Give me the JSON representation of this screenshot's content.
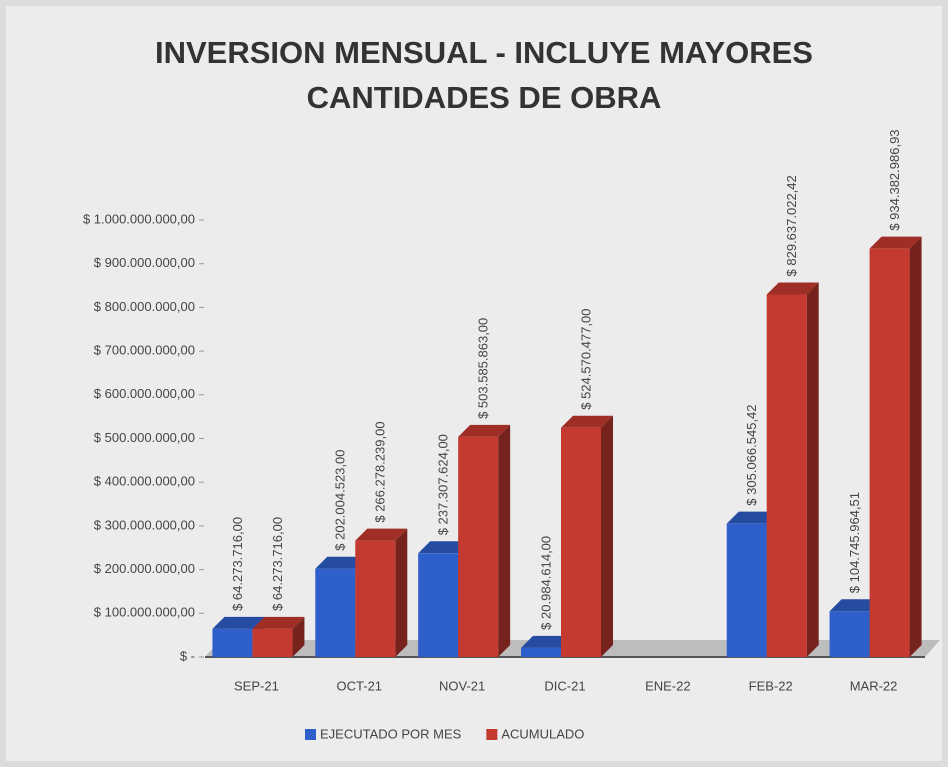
{
  "chart_data": {
    "type": "bar",
    "title": "INVERSION MENSUAL - INCLUYE MAYORES CANTIDADES DE OBRA",
    "categories": [
      "SEP-21",
      "OCT-21",
      "NOV-21",
      "DIC-21",
      "ENE-22",
      "FEB-22",
      "MAR-22"
    ],
    "series": [
      {
        "name": "EJECUTADO POR MES",
        "color": "#2f5fcb",
        "values": [
          64273716,
          202004523,
          237307624,
          20984614,
          null,
          305066545.42,
          104745964.51
        ],
        "value_labels": [
          "$ 64.273.716,00",
          "$ 202.004.523,00",
          "$ 237.307.624,00",
          "$ 20.984.614,00",
          null,
          "$ 305.066.545,42",
          "$ 104.745.964,51"
        ]
      },
      {
        "name": "ACUMULADO",
        "color": "#c53a30",
        "values": [
          64273716,
          266278239,
          503585863,
          524570477,
          null,
          829637022.42,
          934382986.93
        ],
        "value_labels": [
          "$ 64.273.716,00",
          "$ 266.278.239,00",
          "$ 503.585.863,00",
          "$ 524.570.477,00",
          null,
          "$ 829.637.022,42",
          "$ 934.382.986,93"
        ]
      }
    ],
    "ylim": [
      0,
      1000000000
    ],
    "yticks": [
      {
        "value": 0,
        "label": "$ -"
      },
      {
        "value": 100000000,
        "label": "$ 100.000.000,00"
      },
      {
        "value": 200000000,
        "label": "$ 200.000.000,00"
      },
      {
        "value": 300000000,
        "label": "$ 300.000.000,00"
      },
      {
        "value": 400000000,
        "label": "$ 400.000.000,00"
      },
      {
        "value": 500000000,
        "label": "$ 500.000.000,00"
      },
      {
        "value": 600000000,
        "label": "$ 600.000.000,00"
      },
      {
        "value": 700000000,
        "label": "$ 700.000.000,00"
      },
      {
        "value": 800000000,
        "label": "$ 800.000.000,00"
      },
      {
        "value": 900000000,
        "label": "$ 900.000.000,00"
      },
      {
        "value": 1000000000,
        "label": "$ 1.000.000.000,00"
      }
    ],
    "grid": false,
    "legend": "bottom"
  }
}
